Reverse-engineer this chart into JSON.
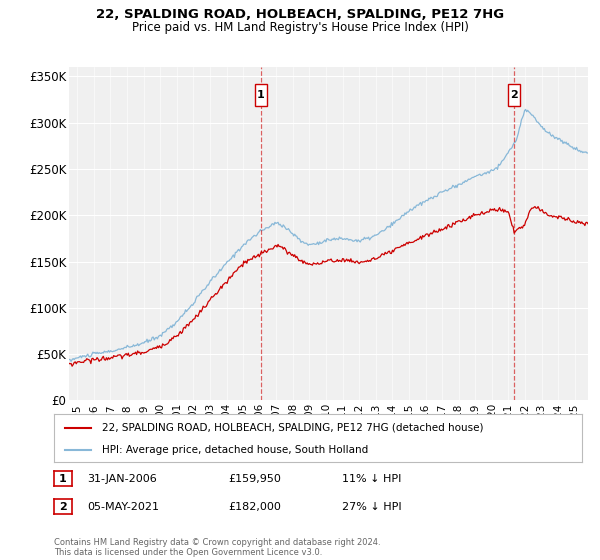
{
  "title": "22, SPALDING ROAD, HOLBEACH, SPALDING, PE12 7HG",
  "subtitle": "Price paid vs. HM Land Registry's House Price Index (HPI)",
  "ylabel_vals": [
    0,
    50000,
    100000,
    150000,
    200000,
    250000,
    300000,
    350000
  ],
  "ylabel_labels": [
    "£0",
    "£50K",
    "£100K",
    "£150K",
    "£200K",
    "£250K",
    "£300K",
    "£350K"
  ],
  "sale1_date": 2006.08,
  "sale1_price": 159950,
  "sale1_label": "1",
  "sale2_date": 2021.34,
  "sale2_price": 182000,
  "sale2_label": "2",
  "line_color_red": "#cc0000",
  "line_color_blue": "#88b8d8",
  "vline_color": "#cc0000",
  "bg_color": "#f0f0f0",
  "legend_label_red": "22, SPALDING ROAD, HOLBEACH, SPALDING, PE12 7HG (detached house)",
  "legend_label_blue": "HPI: Average price, detached house, South Holland",
  "footer": "Contains HM Land Registry data © Crown copyright and database right 2024.\nThis data is licensed under the Open Government Licence v3.0.",
  "xmin": 1994.5,
  "xmax": 2025.8,
  "ymin": 0,
  "ymax": 360000,
  "xtick_years": [
    1995,
    1996,
    1997,
    1998,
    1999,
    2000,
    2001,
    2002,
    2003,
    2004,
    2005,
    2006,
    2007,
    2008,
    2009,
    2010,
    2011,
    2012,
    2013,
    2014,
    2015,
    2016,
    2017,
    2018,
    2019,
    2020,
    2021,
    2022,
    2023,
    2024,
    2025
  ],
  "sale1_row": "31-JAN-2006",
  "sale1_price_str": "£159,950",
  "sale1_pct": "11% ↓ HPI",
  "sale2_row": "05-MAY-2021",
  "sale2_price_str": "£182,000",
  "sale2_pct": "27% ↓ HPI"
}
